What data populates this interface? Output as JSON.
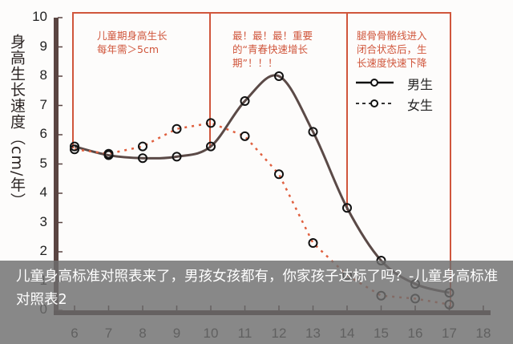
{
  "chart_data": {
    "type": "line",
    "title": "",
    "xlabel": "",
    "ylabel": "身高生长速度（cm/年）",
    "x": [
      6,
      7,
      8,
      9,
      10,
      11,
      12,
      13,
      14,
      15,
      16,
      17
    ],
    "xticks": [
      "6",
      "7",
      "8",
      "9",
      "10",
      "11",
      "12",
      "13",
      "14",
      "15",
      "16",
      "17",
      "18"
    ],
    "yticks": [
      "0",
      "1",
      "2",
      "3",
      "4",
      "5",
      "6",
      "7",
      "8",
      "9",
      "10"
    ],
    "ylim": [
      0,
      10
    ],
    "xlim": [
      5.5,
      18
    ],
    "grid": false,
    "legend_position": "upper right",
    "series": [
      {
        "name": "男生",
        "style": "solid",
        "color": "#5b4a47",
        "values": [
          5.6,
          5.3,
          5.2,
          5.25,
          5.6,
          7.15,
          8.0,
          6.1,
          3.5,
          1.7,
          0.9,
          0.6
        ]
      },
      {
        "name": "女生",
        "style": "dotted",
        "color": "#e0603f",
        "values": [
          5.5,
          5.35,
          5.6,
          6.2,
          6.4,
          5.95,
          4.65,
          2.3,
          1.2,
          0.5,
          0.4,
          0.2
        ]
      }
    ],
    "annotations": [
      {
        "region": [
          6,
          10
        ],
        "text": "儿童期身高生长\n每年需＞5cm"
      },
      {
        "region": [
          10,
          14
        ],
        "text": "最！最！最！重要\n的“青春快速增长\n期”！！！"
      },
      {
        "region": [
          14,
          17
        ],
        "text": "腿骨骨骼线进入\n闭合状态后，生\n长速度快速下降"
      }
    ]
  },
  "axis": {
    "ylabel": "身高生长速度（cm/年）"
  },
  "annotations": {
    "box1_line1": "儿童期身高生长",
    "box1_line2": "每年需＞5cm",
    "box2_line1": "最！最！最！重要",
    "box2_line2": "的“青春快速增长",
    "box2_line3": "期”！！！",
    "box3_line1": "腿骨骨骼线进入",
    "box3_line2": "闭合状态后，生",
    "box3_line3": "长速度快速下降"
  },
  "legend": {
    "boys": "男生",
    "girls": "女生"
  },
  "caption": {
    "text": "儿童身高标准对照表来了，男孩女孩都有，你家孩子达标了吗？-儿童身高标准对照表2"
  },
  "colors": {
    "accent": "#d0563c",
    "axis": "#5a4542",
    "boys_line": "#5b4a47",
    "girls_line": "#e0603f"
  }
}
